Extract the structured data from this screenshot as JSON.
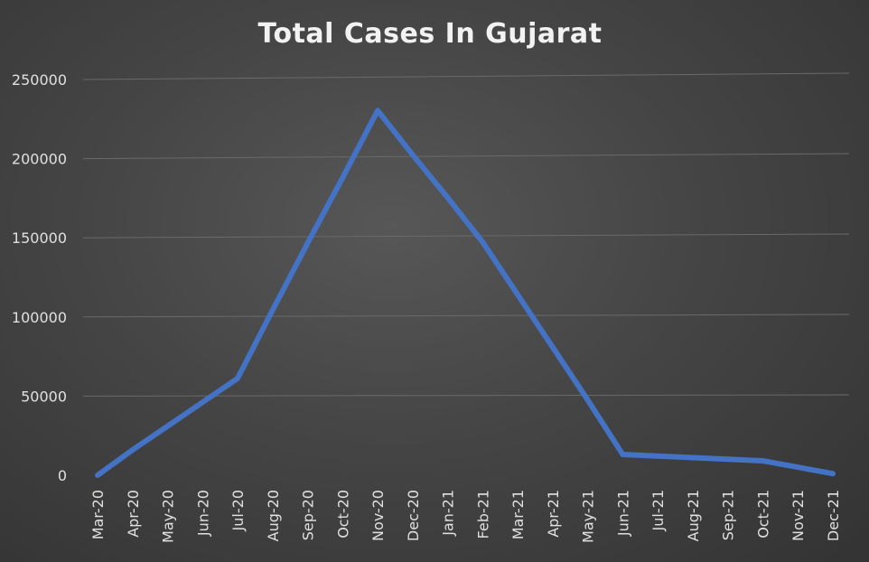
{
  "chart_data": {
    "type": "line",
    "title": "Total Cases In Gujarat",
    "xlabel": "",
    "ylabel": "",
    "ylim": [
      0,
      250000
    ],
    "yticks": [
      0,
      50000,
      100000,
      150000,
      200000,
      250000
    ],
    "grid": true,
    "legend": "none",
    "categories": [
      "Mar-20",
      "Apr-20",
      "May-20",
      "Jun-20",
      "Jul-20",
      "Aug-20",
      "Sep-20",
      "Oct-20",
      "Nov-20",
      "Dec-20",
      "Jan-21",
      "Feb-21",
      "Mar-21",
      "Apr-21",
      "May-21",
      "Jun-21",
      "Jul-21",
      "Aug-21",
      "Sep-21",
      "Oct-21",
      "Nov-21",
      "Dec-21"
    ],
    "series": [
      {
        "values": [
          0,
          16000,
          31000,
          46000,
          61000,
          104000,
          146000,
          187000,
          229000,
          201000,
          174000,
          146000,
          113000,
          80000,
          47000,
          13000,
          12000,
          11000,
          10000,
          9000,
          5000,
          1000
        ],
        "color": "#4472C4"
      }
    ]
  }
}
